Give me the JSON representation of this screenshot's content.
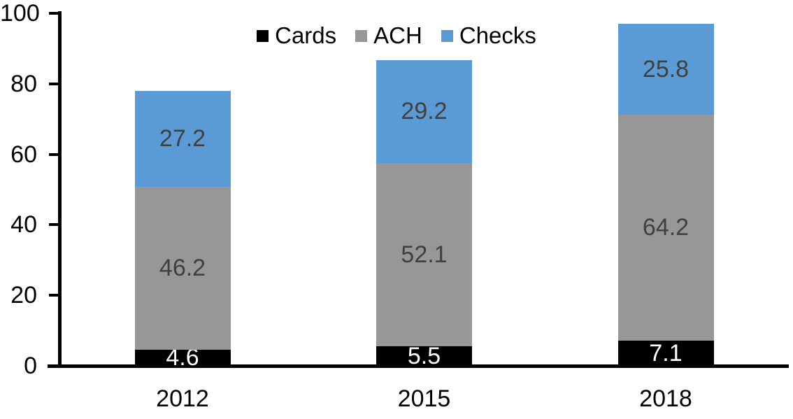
{
  "chart_data": {
    "type": "bar",
    "stacked": true,
    "title": "",
    "xlabel": "",
    "ylabel": "",
    "categories": [
      "2012",
      "2015",
      "2018"
    ],
    "series": [
      {
        "name": "Cards",
        "color": "#000000",
        "label_color": "#ffffff",
        "values": [
          4.6,
          5.5,
          7.1
        ]
      },
      {
        "name": "ACH",
        "color": "#979797",
        "label_color": "#404040",
        "values": [
          46.2,
          52.1,
          64.2
        ]
      },
      {
        "name": "Checks",
        "color": "#5B9BD5",
        "label_color": "#404040",
        "values": [
          27.2,
          29.2,
          25.8
        ]
      }
    ],
    "totals": [
      78.0,
      86.8,
      97.1
    ],
    "ylim": [
      0,
      100
    ],
    "y_ticks": [
      0,
      20,
      40,
      60,
      80,
      100
    ],
    "grid": false,
    "legend_position": "top-center",
    "axis_color": "#000000",
    "tick_label_color": "#000000"
  }
}
